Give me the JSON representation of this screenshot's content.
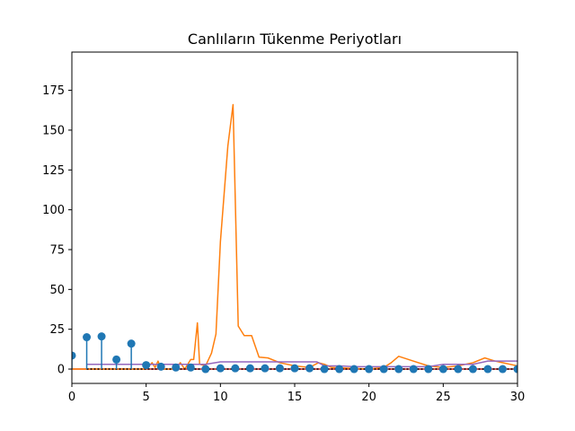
{
  "chart_data": {
    "type": "line",
    "title": "Canlıların Tükenme Periyotları",
    "xlabel": "",
    "ylabel": "",
    "xlim": [
      0,
      30
    ],
    "ylim": [
      -9,
      199
    ],
    "xticks": [
      0,
      5,
      10,
      15,
      20,
      25,
      30
    ],
    "yticks": [
      0,
      25,
      50,
      75,
      100,
      125,
      150,
      175
    ],
    "grid": false,
    "legend": "none",
    "stem": {
      "color": "#1f77b4",
      "baseline_color": "#d62728",
      "x": [
        0,
        1,
        2,
        3,
        4,
        5,
        6,
        7,
        8,
        9,
        10,
        11,
        12,
        13,
        14,
        15,
        16,
        17,
        18,
        19,
        20,
        21,
        22,
        23,
        24,
        25,
        26,
        27,
        28,
        29,
        30
      ],
      "values": [
        8.5,
        20,
        20.5,
        6,
        16,
        2.5,
        1.5,
        1,
        1,
        0,
        0.5,
        0.5,
        0.5,
        0.5,
        0.5,
        0.5,
        0.5,
        0,
        0,
        0,
        0,
        0,
        0,
        0,
        0,
        0,
        0,
        0,
        0,
        0,
        0
      ]
    },
    "series": [
      {
        "color": "#ff7f0e",
        "points": [
          [
            0,
            0
          ],
          [
            5,
            0
          ],
          [
            5.2,
            2
          ],
          [
            5.4,
            4
          ],
          [
            5.6,
            1
          ],
          [
            5.8,
            5
          ],
          [
            6,
            0
          ],
          [
            7,
            0
          ],
          [
            7.3,
            4
          ],
          [
            7.6,
            0
          ],
          [
            8,
            6
          ],
          [
            8.2,
            6
          ],
          [
            8.45,
            29
          ],
          [
            8.6,
            3
          ],
          [
            9,
            2
          ],
          [
            9.4,
            10
          ],
          [
            9.7,
            22
          ],
          [
            10,
            80
          ],
          [
            10.5,
            140
          ],
          [
            10.85,
            166
          ],
          [
            11.2,
            27
          ],
          [
            11.6,
            21
          ],
          [
            12.1,
            21
          ],
          [
            12.6,
            7.5
          ],
          [
            13.2,
            7
          ],
          [
            14,
            4
          ],
          [
            15,
            2
          ],
          [
            16,
            1
          ],
          [
            16.6,
            4
          ],
          [
            17,
            3
          ],
          [
            17.5,
            1
          ],
          [
            20,
            0
          ],
          [
            21,
            1
          ],
          [
            21.5,
            4
          ],
          [
            22,
            8
          ],
          [
            23,
            5
          ],
          [
            24,
            2
          ],
          [
            25,
            1
          ],
          [
            26,
            2
          ],
          [
            27,
            4
          ],
          [
            27.8,
            7
          ],
          [
            28.5,
            5
          ],
          [
            30,
            2
          ]
        ]
      },
      {
        "color": "#9467bd",
        "points": [
          [
            1,
            3
          ],
          [
            2,
            3
          ],
          [
            3,
            3
          ],
          [
            4,
            3
          ],
          [
            5,
            3
          ],
          [
            6,
            3
          ],
          [
            7,
            3
          ],
          [
            8,
            3
          ],
          [
            9,
            3
          ],
          [
            10,
            4.5
          ],
          [
            11,
            4.5
          ],
          [
            12,
            4.5
          ],
          [
            13,
            4.5
          ],
          [
            14,
            4.5
          ],
          [
            15,
            4.5
          ],
          [
            16,
            4.5
          ],
          [
            16.5,
            4.5
          ],
          [
            17,
            2
          ],
          [
            18,
            2
          ],
          [
            19,
            1.5
          ],
          [
            20,
            1.5
          ],
          [
            21,
            1.5
          ],
          [
            22,
            1.5
          ],
          [
            23,
            1.5
          ],
          [
            24,
            1.5
          ],
          [
            25,
            3
          ],
          [
            26,
            3
          ],
          [
            27,
            3
          ],
          [
            28,
            5
          ],
          [
            29,
            5
          ],
          [
            30,
            5
          ]
        ]
      },
      {
        "color": "#000000",
        "dashed": true,
        "points": [
          [
            1,
            0
          ],
          [
            30,
            0
          ]
        ]
      }
    ]
  }
}
